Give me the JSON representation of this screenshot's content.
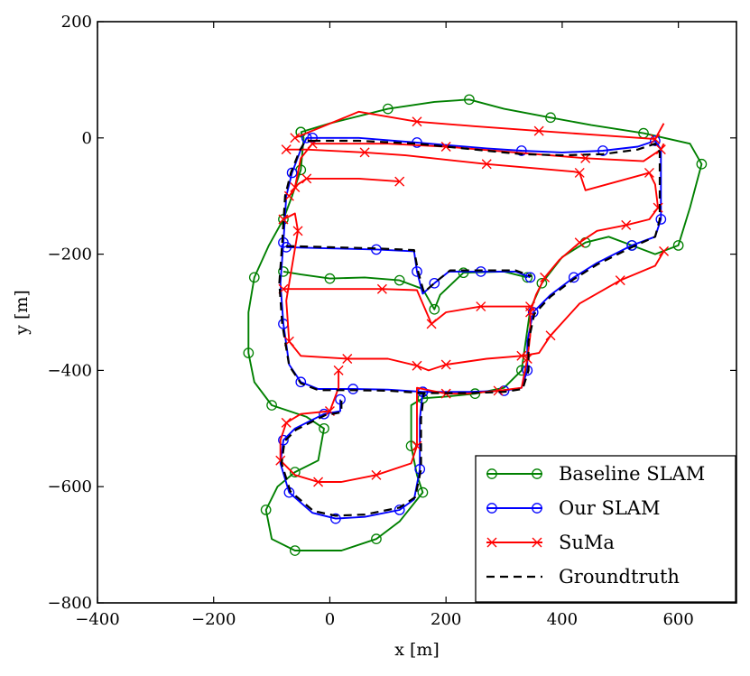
{
  "chart_data": {
    "type": "line",
    "title": "",
    "xlabel": "x [m]",
    "ylabel": "y [m]",
    "xlim": [
      -400,
      700
    ],
    "ylim": [
      -800,
      200
    ],
    "xticks": [
      -400,
      -200,
      0,
      200,
      400,
      600
    ],
    "yticks": [
      -800,
      -600,
      -400,
      -200,
      0,
      200
    ],
    "xtick_labels": [
      "−400",
      "−200",
      "0",
      "200",
      "400",
      "600"
    ],
    "ytick_labels": [
      "−800",
      "−600",
      "−400",
      "−200",
      "0",
      "200"
    ],
    "grid": false,
    "legend_position": "bottom-right",
    "series": [
      {
        "name": "Baseline SLAM",
        "color": "#008000",
        "marker": "circle",
        "linestyle": "solid",
        "points": [
          [
            -50,
            10
          ],
          [
            0,
            25
          ],
          [
            100,
            50
          ],
          [
            180,
            62
          ],
          [
            240,
            66
          ],
          [
            300,
            50
          ],
          [
            380,
            35
          ],
          [
            450,
            22
          ],
          [
            540,
            8
          ],
          [
            620,
            -10
          ],
          [
            640,
            -45
          ],
          [
            620,
            -120
          ],
          [
            600,
            -185
          ],
          [
            560,
            -200
          ],
          [
            520,
            -185
          ],
          [
            480,
            -170
          ],
          [
            440,
            -180
          ],
          [
            400,
            -205
          ],
          [
            365,
            -250
          ],
          [
            345,
            -295
          ],
          [
            330,
            -400
          ],
          [
            300,
            -430
          ],
          [
            250,
            -440
          ],
          [
            200,
            -445
          ],
          [
            160,
            -448
          ],
          [
            140,
            -460
          ],
          [
            140,
            -530
          ],
          [
            150,
            -580
          ],
          [
            160,
            -610
          ],
          [
            120,
            -660
          ],
          [
            80,
            -690
          ],
          [
            20,
            -710
          ],
          [
            -60,
            -710
          ],
          [
            -100,
            -690
          ],
          [
            -110,
            -640
          ],
          [
            -90,
            -600
          ],
          [
            -60,
            -575
          ],
          [
            -20,
            -555
          ],
          [
            -10,
            -500
          ],
          [
            -40,
            -480
          ],
          [
            -100,
            -460
          ],
          [
            -130,
            -420
          ],
          [
            -140,
            -370
          ],
          [
            -140,
            -300
          ],
          [
            -130,
            -240
          ],
          [
            -105,
            -185
          ],
          [
            -80,
            -140
          ],
          [
            -65,
            -100
          ],
          [
            -50,
            -55
          ],
          [
            -45,
            0
          ],
          [
            -50,
            10
          ]
        ]
      },
      {
        "name": "Baseline SLAM",
        "color": "#008000",
        "marker": "circle",
        "linestyle": "solid",
        "points": [
          [
            -80,
            -230
          ],
          [
            -50,
            -235
          ],
          [
            0,
            -242
          ],
          [
            60,
            -240
          ],
          [
            120,
            -245
          ],
          [
            160,
            -260
          ],
          [
            180,
            -295
          ],
          [
            190,
            -270
          ],
          [
            230,
            -232
          ],
          [
            300,
            -230
          ],
          [
            340,
            -240
          ]
        ]
      },
      {
        "name": "Our SLAM",
        "color": "#0000ff",
        "marker": "circle",
        "linestyle": "solid",
        "points": [
          [
            -30,
            0
          ],
          [
            50,
            0
          ],
          [
            150,
            -8
          ],
          [
            270,
            -18
          ],
          [
            330,
            -22
          ],
          [
            400,
            -25
          ],
          [
            470,
            -22
          ],
          [
            530,
            -15
          ],
          [
            560,
            -5
          ],
          [
            570,
            -20
          ],
          [
            570,
            -140
          ],
          [
            560,
            -170
          ],
          [
            520,
            -185
          ],
          [
            460,
            -215
          ],
          [
            420,
            -240
          ],
          [
            380,
            -270
          ],
          [
            350,
            -300
          ],
          [
            340,
            -350
          ],
          [
            340,
            -400
          ],
          [
            330,
            -430
          ],
          [
            300,
            -435
          ],
          [
            240,
            -437
          ],
          [
            160,
            -437
          ],
          [
            100,
            -433
          ],
          [
            40,
            -432
          ],
          [
            -20,
            -432
          ],
          [
            -50,
            -420
          ],
          [
            -70,
            -390
          ],
          [
            -80,
            -320
          ],
          [
            -85,
            -250
          ],
          [
            -80,
            -180
          ],
          [
            -75,
            -100
          ],
          [
            -65,
            -60
          ],
          [
            -50,
            -20
          ],
          [
            -40,
            0
          ],
          [
            -30,
            0
          ]
        ]
      },
      {
        "name": "Our SLAM",
        "color": "#0000ff",
        "marker": "circle",
        "linestyle": "solid",
        "points": [
          [
            -75,
            -188
          ],
          [
            0,
            -190
          ],
          [
            80,
            -192
          ],
          [
            145,
            -195
          ],
          [
            150,
            -230
          ],
          [
            160,
            -268
          ],
          [
            180,
            -250
          ],
          [
            205,
            -230
          ],
          [
            260,
            -230
          ],
          [
            320,
            -230
          ],
          [
            345,
            -240
          ]
        ]
      },
      {
        "name": "Our SLAM",
        "color": "#0000ff",
        "marker": "circle",
        "linestyle": "solid",
        "points": [
          [
            18,
            -450
          ],
          [
            18,
            -470
          ],
          [
            -10,
            -475
          ],
          [
            -60,
            -500
          ],
          [
            -80,
            -520
          ],
          [
            -85,
            -560
          ],
          [
            -70,
            -610
          ],
          [
            -30,
            -645
          ],
          [
            10,
            -655
          ],
          [
            60,
            -652
          ],
          [
            120,
            -640
          ],
          [
            145,
            -622
          ],
          [
            155,
            -570
          ],
          [
            155,
            -483
          ],
          [
            160,
            -437
          ]
        ]
      },
      {
        "name": "SuMa",
        "color": "#ff0000",
        "marker": "x",
        "linestyle": "solid",
        "points": [
          [
            -60,
            0
          ],
          [
            50,
            45
          ],
          [
            150,
            28
          ],
          [
            250,
            20
          ],
          [
            360,
            12
          ],
          [
            460,
            5
          ],
          [
            560,
            -2
          ],
          [
            575,
            25
          ]
        ]
      },
      {
        "name": "SuMa",
        "color": "#ff0000",
        "marker": "x",
        "linestyle": "solid",
        "points": [
          [
            -75,
            -20
          ],
          [
            -40,
            -20
          ],
          [
            60,
            -25
          ],
          [
            130,
            -30
          ],
          [
            270,
            -45
          ],
          [
            420,
            -58
          ],
          [
            430,
            -60
          ],
          [
            440,
            -90
          ],
          [
            550,
            -60
          ],
          [
            560,
            -80
          ],
          [
            565,
            -120
          ],
          [
            550,
            -140
          ],
          [
            510,
            -150
          ],
          [
            460,
            -160
          ],
          [
            430,
            -180
          ],
          [
            395,
            -210
          ],
          [
            370,
            -240
          ],
          [
            355,
            -270
          ],
          [
            345,
            -300
          ],
          [
            345,
            -340
          ],
          [
            340,
            -380
          ],
          [
            330,
            -430
          ],
          [
            290,
            -435
          ],
          [
            235,
            -440
          ],
          [
            200,
            -440
          ],
          [
            150,
            -430
          ],
          [
            150,
            -530
          ],
          [
            140,
            -560
          ],
          [
            80,
            -580
          ],
          [
            20,
            -592
          ],
          [
            -20,
            -592
          ],
          [
            -60,
            -580
          ],
          [
            -85,
            -555
          ],
          [
            -85,
            -520
          ],
          [
            -75,
            -490
          ],
          [
            -50,
            -475
          ],
          [
            0,
            -470
          ],
          [
            15,
            -430
          ],
          [
            15,
            -400
          ]
        ]
      },
      {
        "name": "SuMa",
        "color": "#ff0000",
        "marker": "x",
        "linestyle": "solid",
        "points": [
          [
            -70,
            -100
          ],
          [
            -55,
            -80
          ],
          [
            -40,
            -70
          ],
          [
            50,
            -70
          ],
          [
            120,
            -75
          ]
        ]
      },
      {
        "name": "SuMa",
        "color": "#ff0000",
        "marker": "x",
        "linestyle": "solid",
        "points": [
          [
            -80,
            -260
          ],
          [
            -20,
            -260
          ],
          [
            90,
            -260
          ],
          [
            150,
            -262
          ],
          [
            175,
            -320
          ],
          [
            200,
            -300
          ],
          [
            260,
            -290
          ],
          [
            320,
            -290
          ],
          [
            345,
            -290
          ]
        ]
      },
      {
        "name": "SuMa",
        "color": "#ff0000",
        "marker": "x",
        "linestyle": "solid",
        "points": [
          [
            -80,
            -140
          ],
          [
            -60,
            -130
          ],
          [
            -55,
            -160
          ],
          [
            -75,
            -280
          ],
          [
            -70,
            -350
          ],
          [
            -50,
            -375
          ],
          [
            30,
            -380
          ],
          [
            100,
            -380
          ],
          [
            150,
            -392
          ],
          [
            170,
            -400
          ],
          [
            200,
            -390
          ],
          [
            270,
            -380
          ],
          [
            330,
            -375
          ],
          [
            360,
            -370
          ],
          [
            380,
            -340
          ],
          [
            430,
            -285
          ],
          [
            500,
            -245
          ],
          [
            560,
            -220
          ],
          [
            575,
            -195
          ]
        ]
      },
      {
        "name": "SuMa",
        "color": "#ff0000",
        "marker": "x",
        "linestyle": "solid",
        "points": [
          [
            -60,
            -85
          ],
          [
            -50,
            -35
          ],
          [
            -30,
            -10
          ],
          [
            100,
            -10
          ],
          [
            200,
            -15
          ],
          [
            320,
            -25
          ],
          [
            440,
            -35
          ],
          [
            540,
            -40
          ],
          [
            570,
            -20
          ],
          [
            575,
            -10
          ]
        ]
      },
      {
        "name": "Groundtruth",
        "color": "#000000",
        "marker": "none",
        "linestyle": "dashed",
        "points": [
          [
            -30,
            -5
          ],
          [
            50,
            -5
          ],
          [
            150,
            -10
          ],
          [
            270,
            -22
          ],
          [
            330,
            -28
          ],
          [
            400,
            -30
          ],
          [
            470,
            -28
          ],
          [
            530,
            -20
          ],
          [
            560,
            -10
          ],
          [
            568,
            -25
          ],
          [
            568,
            -140
          ],
          [
            560,
            -170
          ],
          [
            520,
            -188
          ],
          [
            460,
            -218
          ],
          [
            420,
            -243
          ],
          [
            380,
            -273
          ],
          [
            352,
            -303
          ],
          [
            342,
            -350
          ],
          [
            342,
            -400
          ],
          [
            332,
            -432
          ],
          [
            300,
            -437
          ],
          [
            240,
            -439
          ],
          [
            160,
            -439
          ],
          [
            100,
            -435
          ],
          [
            40,
            -434
          ],
          [
            -20,
            -434
          ],
          [
            -50,
            -422
          ],
          [
            -70,
            -392
          ],
          [
            -82,
            -320
          ],
          [
            -87,
            -250
          ],
          [
            -82,
            -180
          ],
          [
            -77,
            -100
          ],
          [
            -67,
            -60
          ],
          [
            -52,
            -22
          ],
          [
            -42,
            -5
          ],
          [
            -30,
            -5
          ]
        ]
      },
      {
        "name": "Groundtruth",
        "color": "#000000",
        "marker": "none",
        "linestyle": "dashed",
        "points": [
          [
            -75,
            -186
          ],
          [
            0,
            -188
          ],
          [
            80,
            -190
          ],
          [
            145,
            -193
          ],
          [
            152,
            -230
          ],
          [
            162,
            -266
          ],
          [
            182,
            -248
          ],
          [
            207,
            -228
          ],
          [
            260,
            -228
          ],
          [
            320,
            -228
          ],
          [
            347,
            -238
          ]
        ]
      },
      {
        "name": "Groundtruth",
        "color": "#000000",
        "marker": "none",
        "linestyle": "dashed",
        "points": [
          [
            20,
            -452
          ],
          [
            20,
            -472
          ],
          [
            -8,
            -477
          ],
          [
            -58,
            -502
          ],
          [
            -78,
            -522
          ],
          [
            -83,
            -560
          ],
          [
            -68,
            -608
          ],
          [
            -28,
            -642
          ],
          [
            10,
            -650
          ],
          [
            60,
            -648
          ],
          [
            120,
            -636
          ],
          [
            147,
            -618
          ],
          [
            157,
            -570
          ],
          [
            157,
            -483
          ],
          [
            162,
            -439
          ]
        ]
      }
    ],
    "legend": [
      {
        "label": "Baseline SLAM",
        "color": "#008000",
        "marker": "circle",
        "linestyle": "solid"
      },
      {
        "label": "Our SLAM",
        "color": "#0000ff",
        "marker": "circle",
        "linestyle": "solid"
      },
      {
        "label": "SuMa",
        "color": "#ff0000",
        "marker": "x",
        "linestyle": "solid"
      },
      {
        "label": "Groundtruth",
        "color": "#000000",
        "marker": "none",
        "linestyle": "dashed"
      }
    ]
  }
}
